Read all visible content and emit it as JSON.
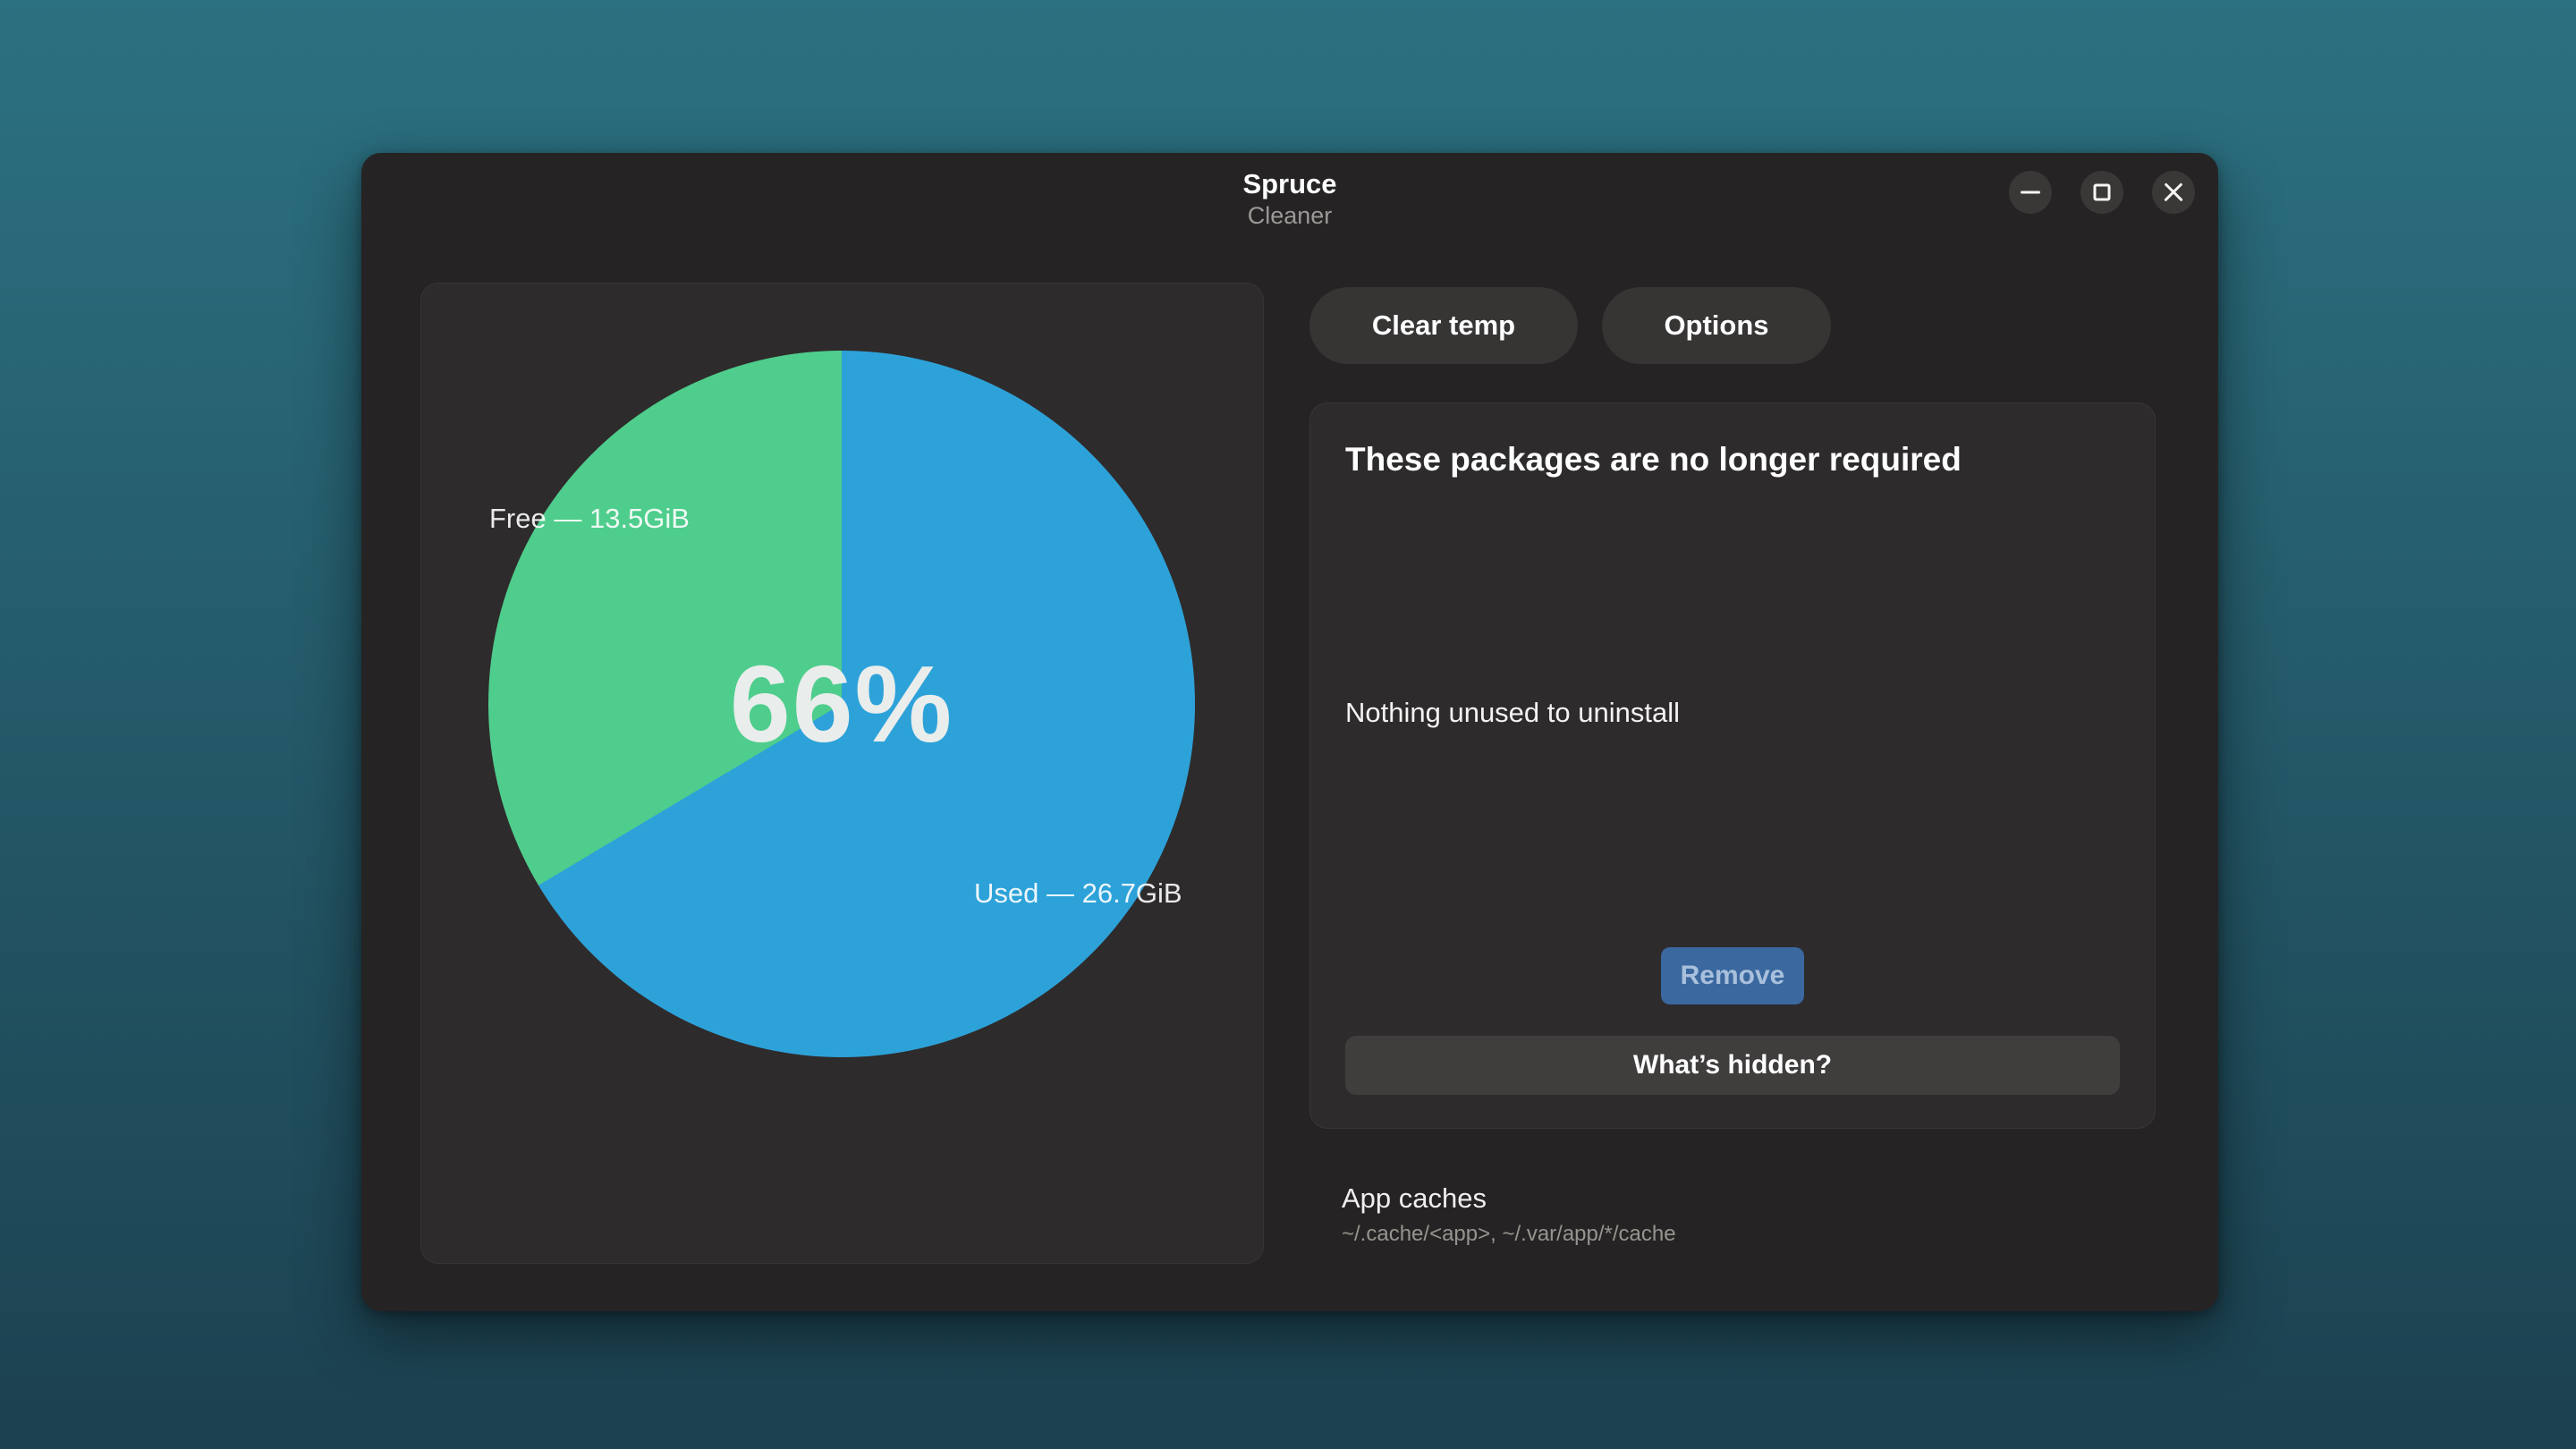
{
  "desktop": {
    "bg_top_color": "#2c7181",
    "bg_bottom_color": "#1c4150"
  },
  "window": {
    "title": "Spruce",
    "subtitle": "Cleaner",
    "controls": {
      "minimize_icon": "minimize-icon",
      "maximize_icon": "maximize-icon",
      "close_icon": "close-icon"
    }
  },
  "chart_data": {
    "type": "pie",
    "center_label": "66%",
    "slices": [
      {
        "name": "Used",
        "label": "Used — 26.7GiB",
        "value_gib": 26.7,
        "percent": 66,
        "color": "#2da2d9"
      },
      {
        "name": "Free",
        "label": "Free — 13.5GiB",
        "value_gib": 13.5,
        "percent": 34,
        "color": "#4fcd8c"
      }
    ],
    "start_angle_deg": 0,
    "direction": "clockwise",
    "legend_position": "on-chart"
  },
  "toolbar": {
    "clear_temp_label": "Clear temp",
    "options_label": "Options"
  },
  "packages_card": {
    "title": "These packages are no longer required",
    "empty_message": "Nothing unused to uninstall",
    "remove_label": "Remove",
    "remove_accent_color": "#3a689f",
    "whats_hidden_label": "What’s hidden?"
  },
  "app_caches": {
    "title": "App caches",
    "paths": "~/.cache/<app>, ~/.var/app/*/cache"
  }
}
